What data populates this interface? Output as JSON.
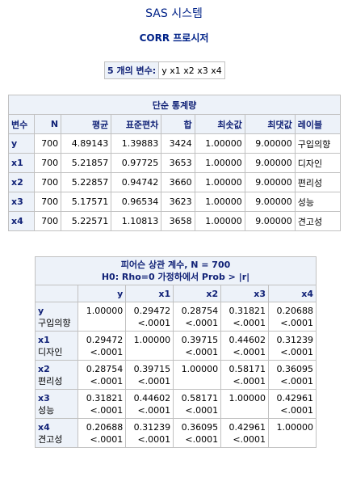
{
  "page": {
    "title": "SAS 시스템",
    "procedure": "CORR 프로시저"
  },
  "variables_box": {
    "label": "5 개의 변수:",
    "value": "y x1 x2 x3 x4"
  },
  "simple_stats": {
    "caption": "단순 통계량",
    "headers": [
      "변수",
      "N",
      "평균",
      "표준편차",
      "합",
      "최솟값",
      "최댓값",
      "레이블"
    ],
    "rows": [
      {
        "var": "y",
        "n": "700",
        "mean": "4.89143",
        "std": "1.39883",
        "sum": "3424",
        "min": "1.00000",
        "max": "9.00000",
        "label": "구입의향"
      },
      {
        "var": "x1",
        "n": "700",
        "mean": "5.21857",
        "std": "0.97725",
        "sum": "3653",
        "min": "1.00000",
        "max": "9.00000",
        "label": "디자인"
      },
      {
        "var": "x2",
        "n": "700",
        "mean": "5.22857",
        "std": "0.94742",
        "sum": "3660",
        "min": "1.00000",
        "max": "9.00000",
        "label": "편리성"
      },
      {
        "var": "x3",
        "n": "700",
        "mean": "5.17571",
        "std": "0.96534",
        "sum": "3623",
        "min": "1.00000",
        "max": "9.00000",
        "label": "성능"
      },
      {
        "var": "x4",
        "n": "700",
        "mean": "5.22571",
        "std": "1.10813",
        "sum": "3658",
        "min": "1.00000",
        "max": "9.00000",
        "label": "견고성"
      }
    ]
  },
  "correlation": {
    "caption_line1": "피어슨 상관 계수, N = 700",
    "caption_line2": "H0: Rho=0 가정하에서 Prob > |r|",
    "columns": [
      "y",
      "x1",
      "x2",
      "x3",
      "x4"
    ],
    "rows": [
      {
        "var": "y",
        "label": "구입의향",
        "r": [
          "1.00000",
          "0.29472",
          "0.28754",
          "0.31821",
          "0.20688"
        ],
        "p": [
          "",
          "<.0001",
          "<.0001",
          "<.0001",
          "<.0001"
        ]
      },
      {
        "var": "x1",
        "label": "디자인",
        "r": [
          "0.29472",
          "1.00000",
          "0.39715",
          "0.44602",
          "0.31239"
        ],
        "p": [
          "<.0001",
          "",
          "<.0001",
          "<.0001",
          "<.0001"
        ]
      },
      {
        "var": "x2",
        "label": "편리성",
        "r": [
          "0.28754",
          "0.39715",
          "1.00000",
          "0.58171",
          "0.36095"
        ],
        "p": [
          "<.0001",
          "<.0001",
          "",
          "<.0001",
          "<.0001"
        ]
      },
      {
        "var": "x3",
        "label": "성능",
        "r": [
          "0.31821",
          "0.44602",
          "0.58171",
          "1.00000",
          "0.42961"
        ],
        "p": [
          "<.0001",
          "<.0001",
          "<.0001",
          "",
          "<.0001"
        ]
      },
      {
        "var": "x4",
        "label": "견고성",
        "r": [
          "0.20688",
          "0.31239",
          "0.36095",
          "0.42961",
          "1.00000"
        ],
        "p": [
          "<.0001",
          "<.0001",
          "<.0001",
          "<.0001",
          ""
        ]
      }
    ]
  },
  "colors": {
    "title": "#002288",
    "header_bg": "#edf2f9",
    "header_text": "#112277",
    "grid": "#c1c1c1"
  }
}
